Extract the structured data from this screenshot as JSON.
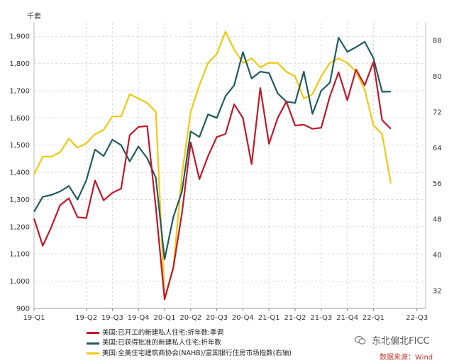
{
  "chart_data": {
    "type": "line",
    "y_left_unit": "千套",
    "y_left_ticks": [
      "900",
      "1,000",
      "1,100",
      "1,200",
      "1,300",
      "1,400",
      "1,500",
      "1,600",
      "1,700",
      "1,800",
      "1,900"
    ],
    "y_left_range": [
      900,
      1950
    ],
    "y_right_ticks": [
      "32",
      "40",
      "48",
      "56",
      "64",
      "72",
      "80",
      "88"
    ],
    "y_right_range": [
      28,
      92
    ],
    "x_tick_labels": [
      "19-Q1",
      "19-Q2",
      "19-Q3",
      "19-Q4",
      "20-Q1",
      "20-Q2",
      "20-Q3",
      "20-Q4",
      "21-Q1",
      "21-Q2",
      "21-Q3",
      "21-Q4",
      "22-Q1",
      "22-Q3"
    ],
    "x_tick_index": [
      0,
      6,
      9,
      12,
      15,
      18,
      21,
      24,
      27,
      30,
      33,
      36,
      39,
      44
    ],
    "x_range": [
      0,
      45
    ],
    "grid": true,
    "series": [
      {
        "name": "美国:已开工的新建私人住宅:折年数:季调",
        "axis": "left",
        "color": "#c0182a",
        "values": [
          1230,
          1130,
          1200,
          1280,
          1305,
          1235,
          1232,
          1370,
          1297,
          1325,
          1340,
          1537,
          1567,
          1570,
          1270,
          934,
          1050,
          1250,
          1510,
          1375,
          1460,
          1530,
          1541,
          1650,
          1600,
          1430,
          1710,
          1505,
          1600,
          1660,
          1572,
          1575,
          1560,
          1564,
          1680,
          1768,
          1665,
          1778,
          1720,
          1805,
          1592,
          1560
        ]
      },
      {
        "name": "美国:已获得批准的新建私人住宅:折年数",
        "axis": "left",
        "color": "#1f5c61",
        "values": [
          1255,
          1310,
          1317,
          1330,
          1350,
          1300,
          1370,
          1484,
          1460,
          1520,
          1500,
          1440,
          1495,
          1452,
          1380,
          1080,
          1235,
          1330,
          1550,
          1530,
          1613,
          1600,
          1680,
          1720,
          1842,
          1745,
          1770,
          1765,
          1690,
          1660,
          1655,
          1770,
          1615,
          1700,
          1730,
          1895,
          1843,
          1860,
          1880,
          1820,
          1696,
          1697
        ]
      },
      {
        "name": "美国:全美住宅建筑商协会(NAHB)/富国银行住房市场指数(右轴)",
        "axis": "right",
        "color": "#f2c80f",
        "values": [
          58,
          62,
          62,
          63,
          66,
          64,
          65,
          67,
          68,
          71,
          71,
          76,
          75,
          74,
          72,
          30,
          37,
          58,
          72,
          78,
          83,
          85,
          90,
          86,
          83,
          84,
          82,
          83,
          83,
          81,
          80,
          75,
          76,
          80,
          83,
          84,
          83,
          81,
          77,
          69,
          67,
          56
        ]
      }
    ],
    "legend": [
      {
        "label": "美国:已开工的新建私人住宅:折年数:季调",
        "color": "#c0182a"
      },
      {
        "label": "美国:已获得批准的新建私人住宅:折年数",
        "color": "#1f5c61"
      },
      {
        "label": "美国:全美住宅建筑商协会(NAHB)/富国银行住房市场指数(右轴)",
        "color": "#f2c80f"
      }
    ]
  },
  "watermark": "东北偏北FICC",
  "source": "数据来源：Wind"
}
